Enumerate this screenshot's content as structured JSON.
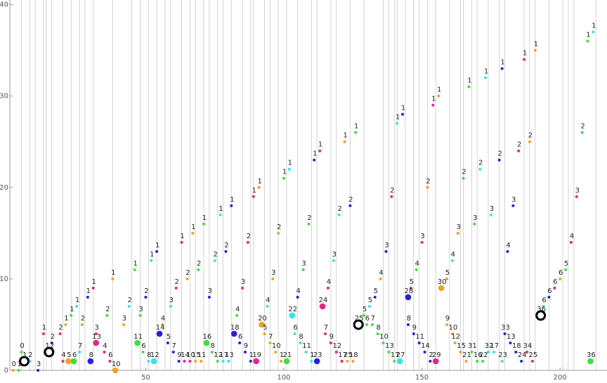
{
  "chart_data": {
    "type": "scatter",
    "xlim": [
      0.8,
      217
    ],
    "ylim": [
      0,
      40.5
    ],
    "xticks": [
      50,
      100,
      150,
      200
    ],
    "yticks": [
      0,
      10,
      20,
      30,
      40
    ],
    "xgrid_lines": [
      5,
      8,
      10,
      13,
      14,
      16,
      20,
      23,
      26,
      28,
      31,
      38,
      45,
      48,
      51,
      54,
      57,
      59,
      63,
      66,
      68,
      71,
      73,
      76,
      78,
      81,
      85,
      88,
      89,
      93,
      95,
      98,
      101,
      105,
      110,
      112,
      117,
      119,
      124,
      129,
      136,
      138,
      140,
      141,
      144,
      147,
      149,
      152,
      155,
      160,
      164,
      165,
      168,
      170,
      174,
      178,
      180,
      187,
      189,
      191,
      196,
      201,
      203,
      205,
      213
    ],
    "series": [
      {
        "color": "#f5a021",
        "size": "small",
        "x": [
          21,
          38,
          67,
          91,
          122,
          156,
          191,
          27,
          65,
          98,
          152,
          189,
          42,
          96,
          163,
          56,
          135,
          159,
          200,
          68,
          70,
          93,
          95,
          97,
          99,
          159,
          161,
          162,
          164,
          166,
          123,
          125,
          2
        ],
        "values": [
          5,
          10,
          15,
          20,
          25,
          30,
          35,
          5,
          10,
          15,
          20,
          25,
          5,
          10,
          15,
          5,
          10,
          10,
          10,
          1,
          1,
          4,
          3,
          2,
          1,
          5,
          4,
          3,
          2,
          1,
          1,
          1,
          0
        ],
        "labels": [
          "1",
          "1",
          "1",
          "1",
          "1",
          "1",
          "1",
          "2",
          "2",
          "2",
          "2",
          "2",
          "3",
          "3",
          "3",
          "4",
          "4",
          "5",
          "6",
          "15",
          "11",
          "5",
          "7",
          "10",
          "1",
          "9",
          "10",
          "12",
          "15",
          "21",
          "25",
          "18",
          "0"
        ]
      },
      {
        "color": "#3ee03e",
        "size": "small",
        "x": [
          23,
          46,
          71,
          100,
          126,
          167,
          210,
          36,
          69,
          109,
          165,
          208,
          48,
          107,
          169,
          83,
          148,
          129,
          202,
          4,
          49,
          74,
          76,
          130,
          132,
          134,
          136,
          138,
          140,
          168,
          170,
          172,
          5
        ],
        "values": [
          6,
          11,
          16,
          21,
          26,
          31,
          36,
          6,
          11,
          16,
          21,
          26,
          6,
          11,
          16,
          6,
          11,
          6,
          11,
          0,
          2,
          2,
          1,
          5,
          5,
          4,
          3,
          2,
          1,
          2,
          1,
          1,
          2
        ],
        "labels": [
          "1",
          "1",
          "1",
          "1",
          "1",
          "1",
          "1",
          "2",
          "2",
          "2",
          "2",
          "2",
          "3",
          "3",
          "3",
          "4",
          "4",
          "5",
          "5",
          "1",
          "6",
          "8",
          "12",
          "6",
          "7",
          "8",
          "10",
          "13",
          "17",
          "31",
          "16",
          "22",
          "0"
        ]
      },
      {
        "color": "#2ee6f0",
        "size": "small",
        "x": [
          25,
          52,
          77,
          102,
          141,
          173,
          212,
          44,
          75,
          120,
          171,
          59,
          118,
          175,
          94,
          161,
          131,
          194,
          8,
          26,
          51,
          78,
          80,
          104,
          106,
          108,
          110,
          174,
          176,
          179
        ],
        "values": [
          7,
          12,
          17,
          22,
          27,
          32,
          37,
          7,
          12,
          17,
          22,
          7,
          12,
          17,
          7,
          12,
          7,
          7,
          1,
          2,
          1,
          1,
          1,
          4,
          3,
          2,
          1,
          2,
          2,
          1
        ],
        "labels": [
          "1",
          "1",
          "1",
          "1",
          "1",
          "1",
          "1",
          "2",
          "2",
          "2",
          "2",
          "3",
          "3",
          "3",
          "4",
          "4",
          "5",
          "6",
          "2",
          "7",
          "8",
          "17",
          "13",
          "6",
          "8",
          "11",
          "1",
          "32",
          "17",
          "23"
        ]
      },
      {
        "color": "#2a1ee0",
        "size": "small",
        "x": [
          29,
          54,
          81,
          111,
          143,
          179,
          16,
          50,
          79,
          124,
          178,
          73,
          137,
          183,
          105,
          181,
          133,
          196,
          11,
          58,
          60,
          62,
          84,
          86,
          88,
          145,
          147,
          149,
          151,
          153,
          180,
          182,
          184,
          186
        ],
        "values": [
          8,
          13,
          18,
          23,
          28,
          33,
          3,
          8,
          13,
          18,
          23,
          8,
          13,
          18,
          8,
          13,
          8,
          8,
          0,
          3,
          2,
          1,
          3,
          2,
          1,
          5,
          4,
          3,
          2,
          1,
          4,
          3,
          2,
          1
        ],
        "labels": [
          "1",
          "1",
          "1",
          "1",
          "1",
          "1",
          "2",
          "2",
          "2",
          "2",
          "2",
          "3",
          "3",
          "3",
          "4",
          "4",
          "5",
          "6",
          "3",
          "5",
          "7",
          "9",
          "6",
          "9",
          "1",
          "8",
          "9",
          "11",
          "14",
          "2",
          "33",
          "13",
          "18",
          "24"
        ]
      },
      {
        "color": "#f0208a",
        "size": "small",
        "x": [
          13,
          31,
          63,
          89,
          113,
          154,
          187,
          19,
          61,
          87,
          139,
          185,
          32,
          85,
          150,
          206,
          116,
          204,
          146,
          198,
          20,
          35,
          37,
          64,
          66,
          115,
          117,
          119,
          121,
          188,
          190
        ],
        "values": [
          4,
          9,
          14,
          19,
          24,
          29,
          34,
          4,
          9,
          14,
          19,
          24,
          4,
          9,
          14,
          19,
          9,
          14,
          9,
          9,
          1,
          2,
          1,
          1,
          1,
          4,
          3,
          2,
          1,
          2,
          1
        ],
        "labels": [
          "1",
          "1",
          "1",
          "1",
          "1",
          "1",
          "1",
          "2",
          "2",
          "2",
          "2",
          "2",
          "3",
          "3",
          "3",
          "3",
          "4",
          "4",
          "5",
          "6",
          "4",
          "4",
          "6",
          "14",
          "10",
          "7",
          "9",
          "12",
          "17",
          "34",
          "25"
        ]
      },
      {
        "color": "#f5a021",
        "size": "large",
        "x": [
          22,
          39,
          92,
          157
        ],
        "values": [
          1,
          0,
          5,
          9
        ],
        "labels": [
          "5",
          "10",
          "20",
          "30"
        ]
      },
      {
        "color": "#3ee03e",
        "size": "large",
        "x": [
          24,
          47,
          72,
          101,
          211
        ],
        "values": [
          1,
          3,
          3,
          1,
          1
        ],
        "labels": [
          "6",
          "11",
          "16",
          "21",
          "36"
        ]
      },
      {
        "color": "#2ee6f0",
        "size": "large",
        "x": [
          53,
          103,
          142
        ],
        "values": [
          1,
          6,
          1
        ],
        "labels": [
          "12",
          "22",
          "27"
        ]
      },
      {
        "color": "#2a1ee0",
        "size": "large",
        "x": [
          30,
          55,
          82,
          112,
          145
        ],
        "values": [
          1,
          4,
          4,
          1,
          8
        ],
        "labels": [
          "8",
          "14",
          "18",
          "23",
          "28"
        ]
      },
      {
        "color": "#f0208a",
        "size": "large",
        "x": [
          32,
          90,
          114,
          155
        ],
        "values": [
          3,
          1,
          7,
          1
        ],
        "labels": [
          "13",
          "19",
          "24",
          "29"
        ]
      },
      {
        "color": "#000000",
        "size": "ring",
        "x": [
          6,
          15,
          127,
          193
        ],
        "values": [
          1,
          2,
          5,
          6
        ],
        "labels": [
          "1",
          "12",
          "25",
          "36"
        ]
      }
    ]
  }
}
